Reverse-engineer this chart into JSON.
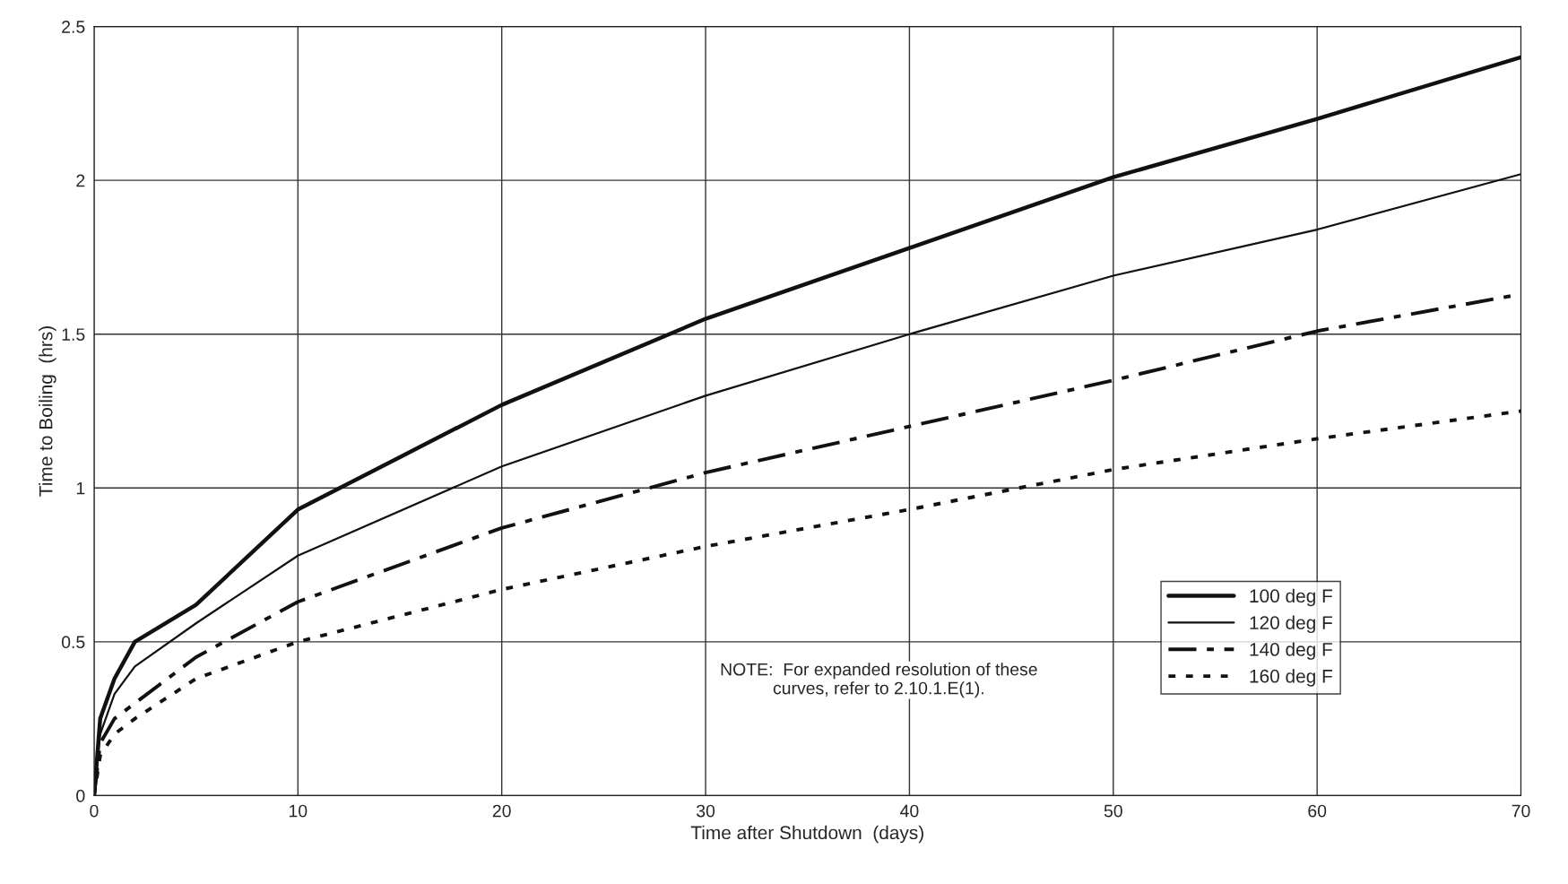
{
  "chart_data": {
    "type": "line",
    "xlabel": "Time after Shutdown  (days)",
    "ylabel": "Time to Boiling  (hrs)",
    "xlim": [
      0,
      70
    ],
    "ylim": [
      0,
      2.5
    ],
    "xticks": [
      0,
      10,
      20,
      30,
      40,
      50,
      60,
      70
    ],
    "yticks": [
      0,
      0.5,
      1,
      1.5,
      2,
      2.5
    ],
    "grid": true,
    "legend": "bottom right",
    "marker": "none",
    "annotations": [
      "NOTE:  For expanded resolution of these\ncurves, refer to 2.10.1.E(1)."
    ],
    "series": [
      {
        "name": "100 deg F",
        "color": "#111111",
        "line_style": "solid",
        "x": [
          0,
          0.3,
          1,
          2,
          5,
          10,
          20,
          30,
          40,
          50,
          60,
          70
        ],
        "values": [
          0,
          0.25,
          0.38,
          0.5,
          0.62,
          0.93,
          1.27,
          1.55,
          1.78,
          2.01,
          2.2,
          2.4
        ]
      },
      {
        "name": "120 deg F",
        "color": "#111111",
        "line_style": "solid",
        "x": [
          0,
          0.3,
          1,
          2,
          5,
          10,
          20,
          30,
          40,
          50,
          60,
          70
        ],
        "values": [
          0,
          0.2,
          0.33,
          0.42,
          0.56,
          0.78,
          1.07,
          1.3,
          1.5,
          1.69,
          1.84,
          2.02
        ]
      },
      {
        "name": "140 deg F",
        "color": "#111111",
        "line_style": "dashed",
        "x": [
          0,
          0.3,
          1,
          2,
          5,
          10,
          20,
          30,
          40,
          50,
          60,
          70
        ],
        "values": [
          0,
          0.17,
          0.25,
          0.3,
          0.45,
          0.63,
          0.87,
          1.05,
          1.2,
          1.35,
          1.51,
          1.63
        ]
      },
      {
        "name": "160 deg F",
        "color": "#111111",
        "line_style": "dotted",
        "x": [
          0,
          0.3,
          1,
          2,
          5,
          10,
          20,
          30,
          40,
          50,
          60,
          70
        ],
        "values": [
          0,
          0.13,
          0.2,
          0.25,
          0.38,
          0.5,
          0.67,
          0.81,
          0.93,
          1.06,
          1.16,
          1.25
        ]
      }
    ]
  }
}
